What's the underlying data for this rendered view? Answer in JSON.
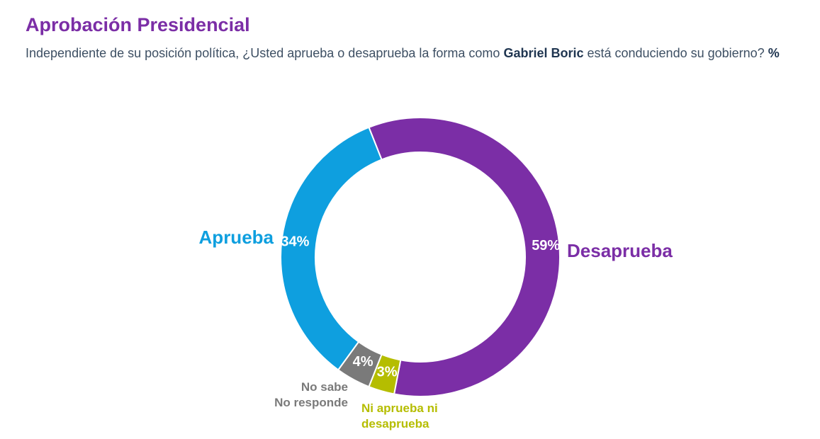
{
  "header": {
    "title": "Aprobación Presidencial",
    "subtitle_pre": "Independiente de su posición política, ¿Usted aprueba o desaprueba la forma como ",
    "subtitle_bold": "Gabriel Boric",
    "subtitle_post": " está conduciendo su gobierno? ",
    "subtitle_unit": "%"
  },
  "chart_data": {
    "type": "pie",
    "donut": true,
    "title": "Aprobación Presidencial",
    "slices": [
      {
        "name": "Desaprueba",
        "value": 59,
        "label": "59%",
        "color": "#7b2ea6",
        "label_lines": [
          "Desaprueba"
        ]
      },
      {
        "name": "Ni aprueba ni desaprueba",
        "value": 3,
        "label": "3%",
        "color": "#b5bd00",
        "label_lines": [
          "Ni aprueba ni",
          "desaprueba"
        ]
      },
      {
        "name": "No sabe No responde",
        "value": 4,
        "label": "4%",
        "color": "#7a7a7a",
        "label_lines": [
          "No sabe",
          "No responde"
        ]
      },
      {
        "name": "Aprueba",
        "value": 34,
        "label": "34%",
        "color": "#0e9fdf",
        "label_lines": [
          "Aprueba"
        ]
      }
    ]
  }
}
